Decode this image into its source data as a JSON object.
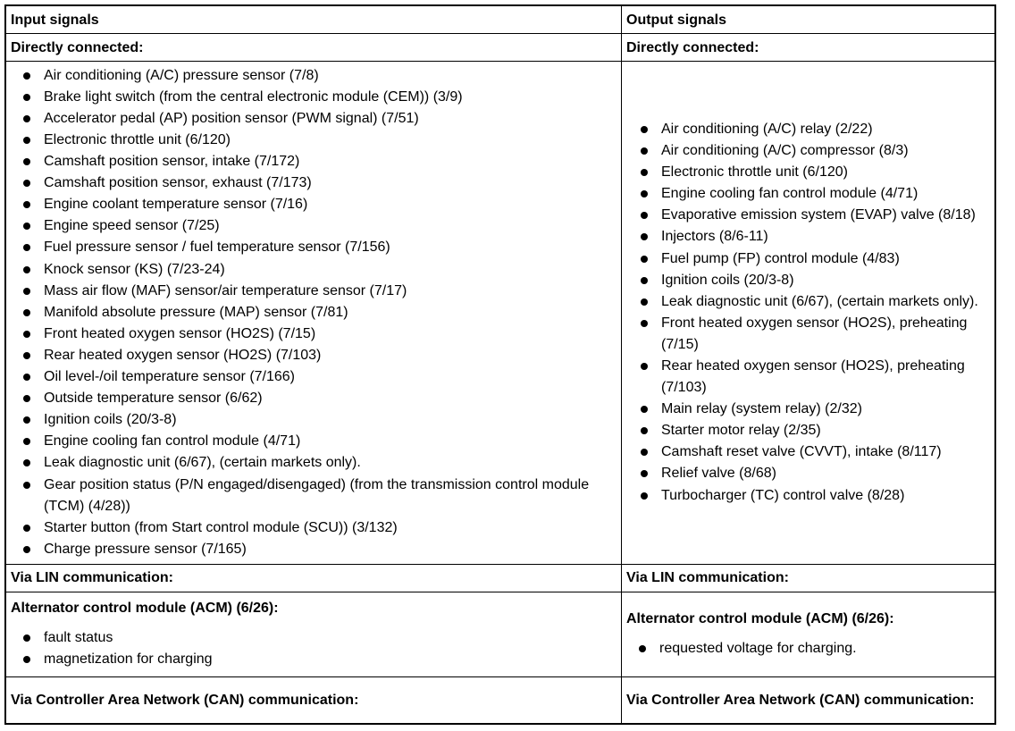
{
  "table": {
    "rows": [
      [
        {
          "heading": "Input signals"
        },
        {
          "heading": "Output signals"
        }
      ],
      [
        {
          "heading": "Directly connected:"
        },
        {
          "heading": "Directly connected:"
        }
      ],
      [
        {
          "items": [
            "Air conditioning (A/C) pressure sensor (7/8)",
            "Brake light switch (from the central electronic module (CEM)) (3/9)",
            "Accelerator pedal (AP) position sensor (PWM signal) (7/51)",
            "Electronic throttle unit (6/120)",
            "Camshaft position sensor, intake (7/172)",
            "Camshaft position sensor, exhaust (7/173)",
            "Engine coolant temperature sensor (7/16)",
            "Engine speed sensor (7/25)",
            "Fuel pressure sensor / fuel temperature sensor (7/156)",
            "Knock sensor (KS) (7/23-24)",
            "Mass air flow (MAF) sensor/air temperature sensor (7/17)",
            "Manifold absolute pressure (MAP) sensor (7/81)",
            "Front heated oxygen sensor (HO2S) (7/15)",
            "Rear heated oxygen sensor (HO2S) (7/103)",
            "Oil level-/oil temperature sensor (7/166)",
            "Outside temperature sensor (6/62)",
            "Ignition coils (20/3-8)",
            "Engine cooling fan control module (4/71)",
            "Leak diagnostic unit (6/67), (certain markets only).",
            "Gear position status (P/N engaged/disengaged) (from the transmission control module (TCM) (4/28))",
            "Starter button (from Start control module (SCU)) (3/132)",
            "Charge pressure sensor (7/165)"
          ]
        },
        {
          "items": [
            "Air conditioning (A/C) relay (2/22)",
            "Air conditioning (A/C) compressor (8/3)",
            "Electronic throttle unit (6/120)",
            "Engine cooling fan control module (4/71)",
            "Evaporative emission system (EVAP) valve (8/18)",
            "Injectors (8/6-11)",
            "Fuel pump (FP) control module (4/83)",
            "Ignition coils (20/3-8)",
            "Leak diagnostic unit (6/67), (certain markets only).",
            "Front heated oxygen sensor (HO2S), preheating (7/15)",
            "Rear heated oxygen sensor (HO2S), preheating (7/103)",
            "Main relay (system relay) (2/32)",
            "Starter motor relay (2/35)",
            "Camshaft reset valve (CVVT), intake (8/117)",
            "Relief valve (8/68)",
            "Turbocharger (TC) control valve (8/28)"
          ]
        }
      ],
      [
        {
          "heading": "Via LIN communication:"
        },
        {
          "heading": "Via LIN communication:"
        }
      ],
      [
        {
          "heading": "Alternator control module (ACM) (6/26):",
          "items": [
            "fault status",
            "magnetization for charging"
          ]
        },
        {
          "heading": "Alternator control module (ACM) (6/26):",
          "items": [
            "requested voltage for charging."
          ]
        }
      ],
      [
        {
          "heading": "Via Controller Area Network (CAN) communication:"
        },
        {
          "heading": "Via Controller Area Network (CAN) communication:"
        }
      ]
    ]
  }
}
